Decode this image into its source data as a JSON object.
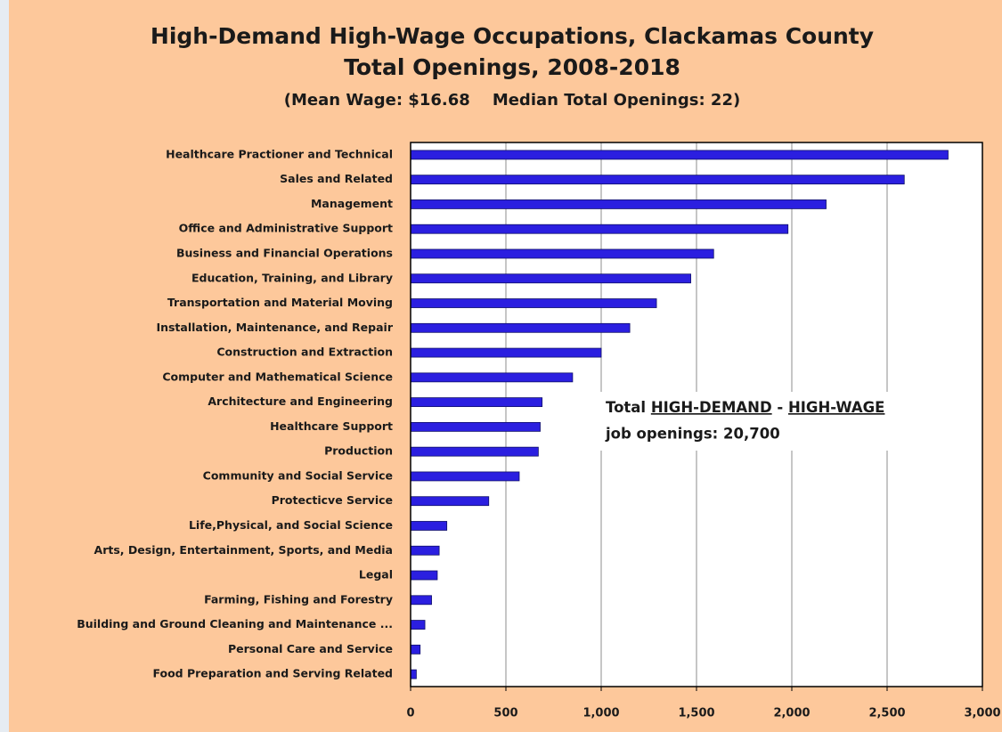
{
  "chart_data": {
    "type": "hbar",
    "title": "High-Demand High-Wage Occupations, Clackamas County",
    "subtitle": "Total Openings, 2008-2018",
    "note": "(Mean Wage: $16.68    Median Total Openings: 22)",
    "categories": [
      "Healthcare Practioner and Technical",
      "Sales and Related",
      "Management",
      "Office and Administrative Support",
      "Business and Financial Operations",
      "Education, Training, and Library",
      "Transportation and Material Moving",
      "Installation, Maintenance, and Repair",
      "Construction and Extraction",
      "Computer and Mathematical Science",
      "Architecture and Engineering",
      "Healthcare Support",
      "Production",
      "Community and Social Service",
      "Protecticve Service",
      "Life,Physical, and Social Science",
      "Arts, Design, Entertainment, Sports, and Media",
      "Legal",
      "Farming, Fishing and Forestry",
      "Building and Ground Cleaning and Maintenance ...",
      "Personal Care and Service",
      "Food Preparation and Serving Related"
    ],
    "values": [
      2820,
      2590,
      2180,
      1980,
      1590,
      1470,
      1290,
      1150,
      1000,
      850,
      690,
      680,
      670,
      570,
      410,
      190,
      150,
      140,
      110,
      75,
      50,
      30
    ],
    "color": "#2b1fe0",
    "xlim": [
      0,
      3000
    ],
    "xticks": [
      0,
      500,
      {
        "value": 1000,
        "label": "1,000"
      },
      {
        "value": 1500,
        "label": "1,500"
      },
      {
        "value": 2000,
        "label": "2,000"
      },
      {
        "value": 2500,
        "label": "2,500"
      },
      {
        "value": 3000,
        "label": "3,000"
      }
    ],
    "grid": true,
    "annotation": {
      "parts": [
        {
          "text": "Total "
        },
        {
          "text": "HIGH-DEMAND",
          "underline": true
        },
        {
          "text": " - "
        },
        {
          "text": "HIGH-WAGE",
          "underline": true
        }
      ],
      "line2": "job openings: 20,700"
    }
  }
}
